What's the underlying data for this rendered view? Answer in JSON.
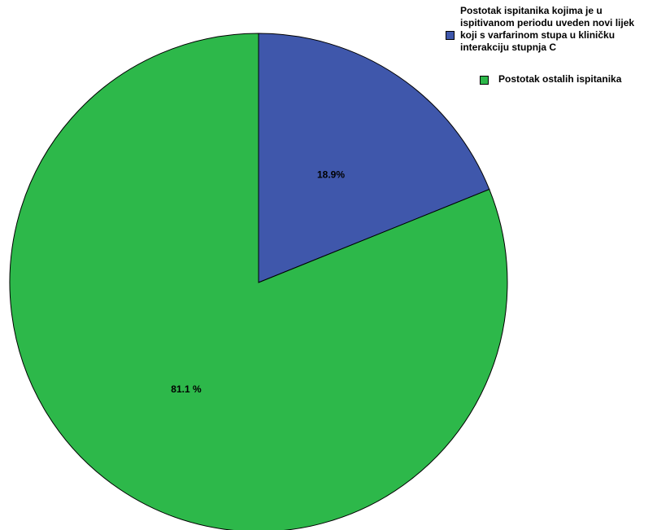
{
  "chart_data": {
    "type": "pie",
    "start_angle_deg": 0,
    "direction": "clockwise",
    "slices": [
      {
        "label": "Postotak ispitanika kojima je u ispitivanom periodu uveden novi lijek koji s varfarinom stupa u kliničku interakciju stupnja C",
        "value": 18.9,
        "display": "18.9%",
        "color": "#3f57ab"
      },
      {
        "label": "Postotak ostalih ispitanika",
        "value": 81.1,
        "display": "81.1 %",
        "color": "#2db84a"
      }
    ],
    "legend_position": "top-right"
  }
}
